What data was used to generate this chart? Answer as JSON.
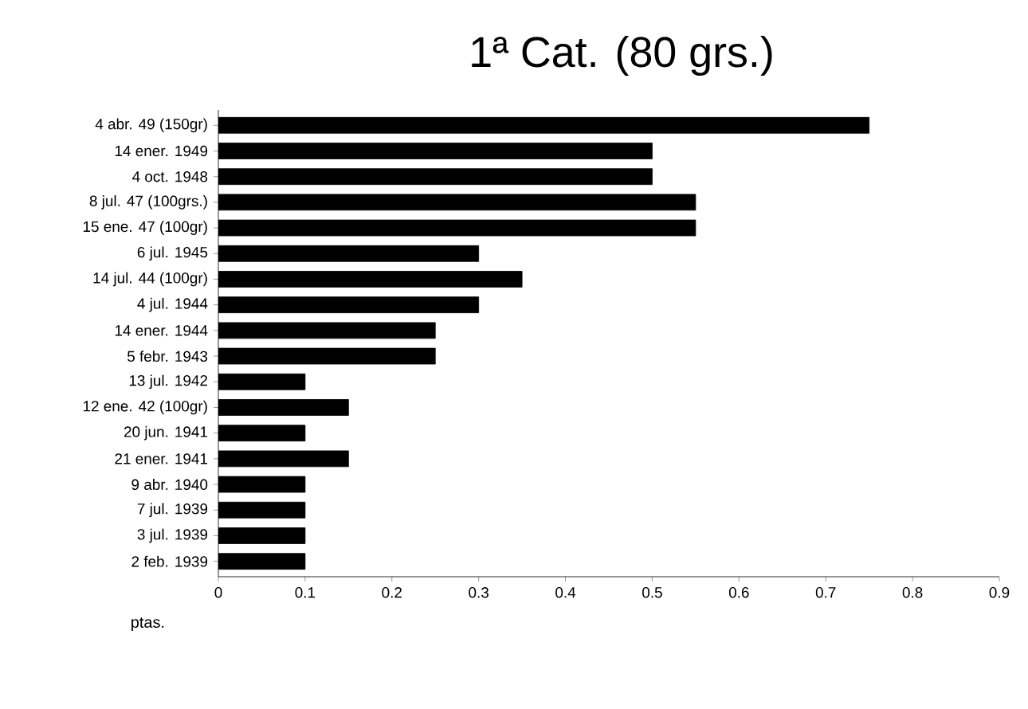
{
  "chart_data": {
    "type": "bar",
    "orientation": "horizontal",
    "title": "1ª Cat. (80 grs.)",
    "xlabel": "ptas.",
    "categories": [
      "4 abr. 49 (150gr)",
      "14 ener. 1949",
      "4 oct. 1948",
      "8 jul. 47 (100grs.)",
      "15 ene. 47 (100gr)",
      "6 jul. 1945",
      "14 jul. 44 (100gr)",
      "4 jul. 1944",
      "14 ener. 1944",
      "5 febr. 1943",
      "13 jul. 1942",
      "12 ene. 42 (100gr)",
      "20 jun. 1941",
      "21 ener. 1941",
      "9 abr. 1940",
      "7 jul. 1939",
      "3 jul. 1939",
      "2 feb. 1939"
    ],
    "values": [
      0.75,
      0.5,
      0.5,
      0.55,
      0.55,
      0.3,
      0.35,
      0.3,
      0.25,
      0.25,
      0.1,
      0.15,
      0.1,
      0.15,
      0.1,
      0.1,
      0.1,
      0.1
    ],
    "color": "#000000",
    "xlim": [
      0,
      0.9
    ],
    "xticks": [
      0,
      0.1,
      0.2,
      0.3,
      0.4,
      0.5,
      0.6,
      0.7,
      0.8,
      0.9
    ],
    "grid": false
  }
}
